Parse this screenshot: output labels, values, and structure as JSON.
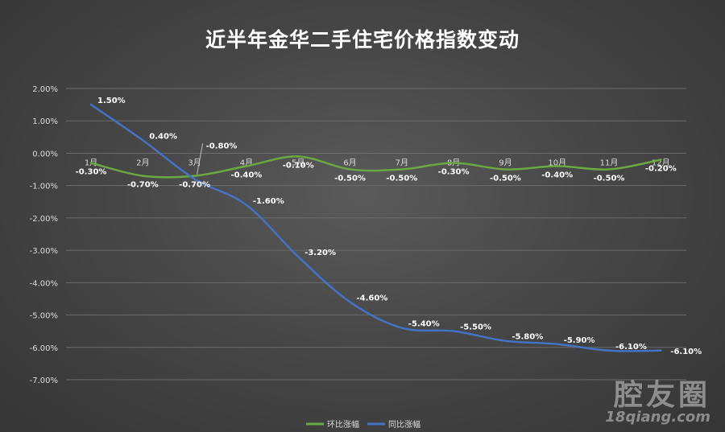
{
  "chart_data": {
    "type": "line",
    "title": "近半年金华二手住宅价格指数变动",
    "categories": [
      "1月",
      "2月",
      "3月",
      "4月",
      "5月",
      "6月",
      "7月",
      "8月",
      "9月",
      "10月",
      "11月",
      "12月"
    ],
    "y_ticks": [
      "2.00%",
      "1.00%",
      "0.00%",
      "-1.00%",
      "-2.00%",
      "-3.00%",
      "-4.00%",
      "-5.00%",
      "-6.00%",
      "-7.00%"
    ],
    "ylim": [
      -7,
      2
    ],
    "grid": true,
    "legend_position": "bottom",
    "series": [
      {
        "name": "环比涨幅",
        "color": "#6aa842",
        "values": [
          -0.3,
          -0.7,
          -0.7,
          -0.4,
          -0.1,
          -0.5,
          -0.5,
          -0.3,
          -0.5,
          -0.4,
          -0.5,
          -0.2
        ],
        "labels": [
          "-0.30%",
          "-0.70%",
          "-0.70%",
          "-0.40%",
          "-0.10%",
          "-0.50%",
          "-0.50%",
          "-0.30%",
          "-0.50%",
          "-0.40%",
          "-0.50%",
          "-0.20%"
        ]
      },
      {
        "name": "同比涨幅",
        "color": "#4472c4",
        "values": [
          1.5,
          0.4,
          -0.8,
          -1.6,
          -3.2,
          -4.6,
          -5.4,
          -5.5,
          -5.8,
          -5.9,
          -6.1,
          -6.1
        ],
        "labels": [
          "1.50%",
          "0.40%",
          "-0.80%",
          "-1.60%",
          "-3.20%",
          "-4.60%",
          "-5.40%",
          "-5.50%",
          "-5.80%",
          "-5.90%",
          "-6.10%",
          "-6.10%"
        ]
      }
    ]
  },
  "watermark": {
    "main": "腔友圈",
    "sub": "18qiang.com"
  }
}
